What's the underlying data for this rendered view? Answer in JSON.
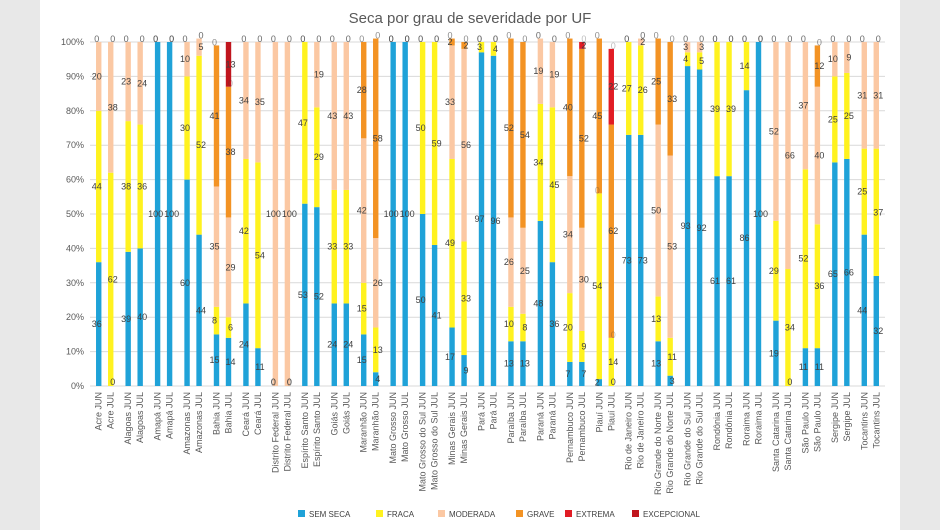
{
  "chart_data": {
    "type": "bar",
    "stacked": true,
    "title": "Seca por grau de severidade por UF",
    "ylim": [
      0,
      100
    ],
    "ytick_labels": [
      "0%",
      "10%",
      "20%",
      "30%",
      "40%",
      "50%",
      "60%",
      "70%",
      "80%",
      "90%",
      "100%"
    ],
    "grid": true,
    "legend_position": "bottom",
    "categories": [
      "Acre JUN",
      "Acre JUL",
      "Alagoas JUN",
      "Alagoas JUL",
      "Amapá JUN",
      "Amapá JUL",
      "Amazonas JUN",
      "Amazonas JUL",
      "Bahia JUN",
      "Bahia JUL",
      "Ceará JUN",
      "Ceará JUL",
      "Distrito Federal JUN",
      "Distrito Federal JUL",
      "Espírito Santo JUN",
      "Espírito Santo JUL",
      "Goiás JUN",
      "Goiás JUL",
      "Maranhão JUN",
      "Maranhão JUL",
      "Mato Grosso JUN",
      "Mato Grosso JUL",
      "Mato Grosso do Sul JUN",
      "Mato Grosso do Sul JUL",
      "Minas Gerais JUN",
      "Minas Gerais JUL",
      "Pará JUN",
      "Pará JUL",
      "Paraíba JUN",
      "Paraíba JUL",
      "Paraná JUN",
      "Paraná JUL",
      "Pernambuco JUN",
      "Pernambuco JUL",
      "Piauí JUN",
      "Piauí JUL",
      "Rio de Janeiro JUN",
      "Rio de Janeiro JUL",
      "Rio Grande do Norte JUN",
      "Rio Grande do Norte JUL",
      "Rio Grande do Sul JUN",
      "Rio Grande do Sul JUL",
      "Rondônia JUN",
      "Rondônia JUL",
      "Roraima JUN",
      "Roraima JUL",
      "Santa Catarina JUN",
      "Santa Catarina JUL",
      "São Paulo JUN",
      "São Paulo JUL",
      "Sergipe JUN",
      "Sergipe JUL",
      "Tocantins JUN",
      "Tocantins JUL"
    ],
    "series": [
      {
        "name": "SEM SECA",
        "color": "#1fa2d8",
        "values": [
          36,
          0,
          39,
          40,
          100,
          100,
          60,
          44,
          15,
          14,
          24,
          11,
          0,
          0,
          53,
          52,
          24,
          24,
          15,
          4,
          100,
          100,
          50,
          41,
          17,
          9,
          97,
          96,
          13,
          13,
          48,
          36,
          7,
          7,
          2,
          0,
          73,
          73,
          13,
          3,
          93,
          92,
          61,
          61,
          86,
          100,
          19,
          0,
          11,
          11,
          65,
          66,
          44,
          32
        ]
      },
      {
        "name": "FRACA",
        "color": "#fff21f",
        "values": [
          44,
          62,
          38,
          36,
          0,
          0,
          30,
          52,
          8,
          6,
          42,
          54,
          0,
          0,
          47,
          29,
          33,
          33,
          15,
          13,
          0,
          0,
          50,
          59,
          49,
          33,
          3,
          4,
          10,
          8,
          34,
          45,
          20,
          9,
          54,
          14,
          27,
          26,
          13,
          11,
          4,
          5,
          39,
          39,
          14,
          0,
          29,
          34,
          52,
          36,
          25,
          25,
          25,
          37
        ]
      },
      {
        "name": "MODERADA",
        "color": "#fbc8a3",
        "values": [
          20,
          38,
          23,
          24,
          0,
          0,
          10,
          5,
          35,
          29,
          34,
          35,
          100,
          100,
          0,
          19,
          43,
          43,
          42,
          26,
          0,
          0,
          0,
          0,
          33,
          56,
          0,
          0,
          26,
          25,
          19,
          19,
          34,
          30,
          0,
          0,
          0,
          2,
          50,
          53,
          3,
          3,
          0,
          0,
          0,
          0,
          52,
          66,
          37,
          40,
          10,
          9,
          31,
          31
        ]
      },
      {
        "name": "GRAVE",
        "color": "#f39324",
        "values": [
          0,
          0,
          0,
          0,
          0,
          0,
          0,
          0,
          41,
          38,
          0,
          0,
          0,
          0,
          0,
          0,
          0,
          0,
          28,
          58,
          0,
          0,
          0,
          0,
          2,
          2,
          0,
          0,
          52,
          54,
          0,
          0,
          40,
          52,
          45,
          62,
          0,
          0,
          25,
          33,
          0,
          0,
          0,
          0,
          0,
          0,
          0,
          0,
          0,
          12,
          0,
          0,
          0,
          0
        ]
      },
      {
        "name": "EXTREMA",
        "color": "#e11c24",
        "values": [
          0,
          0,
          0,
          0,
          0,
          0,
          0,
          0,
          0,
          0,
          0,
          0,
          0,
          0,
          0,
          0,
          0,
          0,
          0,
          0,
          0,
          0,
          0,
          0,
          0,
          0,
          0,
          0,
          0,
          0,
          0,
          0,
          0,
          2,
          0,
          22,
          0,
          0,
          0,
          0,
          0,
          0,
          0,
          0,
          0,
          0,
          0,
          0,
          0,
          0,
          0,
          0,
          0,
          0
        ]
      },
      {
        "name": "EXCEPCIONAL",
        "color": "#c0151d",
        "values": [
          0,
          0,
          0,
          0,
          0,
          0,
          0,
          0,
          0,
          13,
          0,
          0,
          0,
          0,
          0,
          0,
          0,
          0,
          0,
          0,
          0,
          0,
          0,
          0,
          0,
          0,
          0,
          0,
          0,
          0,
          0,
          0,
          0,
          0,
          0,
          0,
          0,
          0,
          0,
          0,
          0,
          0,
          0,
          0,
          0,
          0,
          0,
          0,
          0,
          0,
          0,
          0,
          0,
          0
        ]
      }
    ]
  }
}
